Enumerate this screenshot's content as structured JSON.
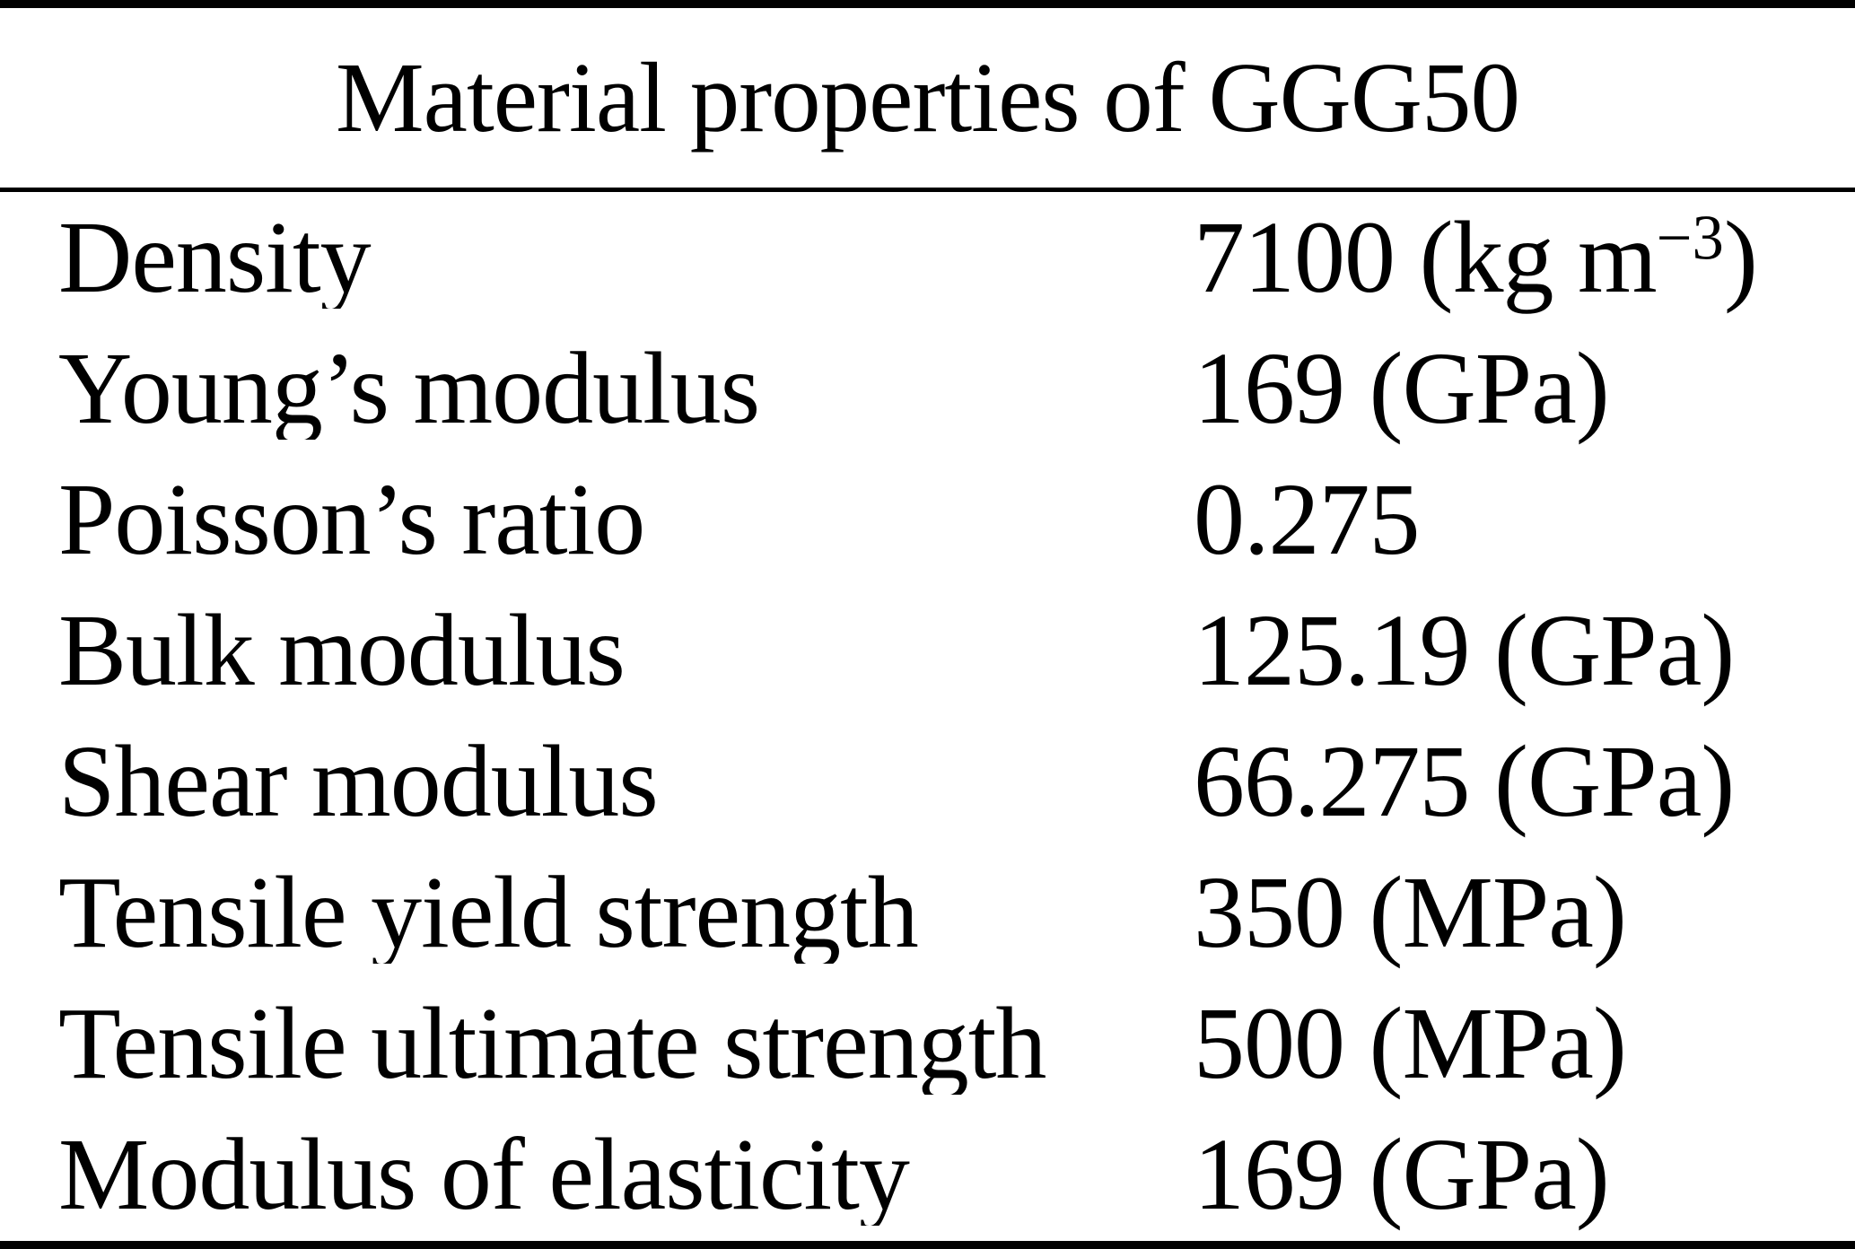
{
  "title": "Material properties of GGG50",
  "colors": {
    "background": "#ffffff",
    "text": "#000000",
    "rule": "#000000"
  },
  "table": {
    "rows": [
      {
        "label": "Density",
        "value": "7100 (kg m",
        "sup": "−3",
        "tail": ")"
      },
      {
        "label": "Young’s modulus",
        "value": "169 (GPa)",
        "sup": "",
        "tail": ""
      },
      {
        "label": "Poisson’s ratio",
        "value": "0.275",
        "sup": "",
        "tail": ""
      },
      {
        "label": "Bulk modulus",
        "value": "125.19 (GPa)",
        "sup": "",
        "tail": ""
      },
      {
        "label": "Shear modulus",
        "value": "66.275 (GPa)",
        "sup": "",
        "tail": ""
      },
      {
        "label": "Tensile yield strength",
        "value": "350 (MPa)",
        "sup": "",
        "tail": ""
      },
      {
        "label": "Tensile ultimate strength",
        "value": "500 (MPa)",
        "sup": "",
        "tail": ""
      },
      {
        "label": "Modulus of elasticity",
        "value": "169 (GPa)",
        "sup": "",
        "tail": ""
      }
    ]
  }
}
